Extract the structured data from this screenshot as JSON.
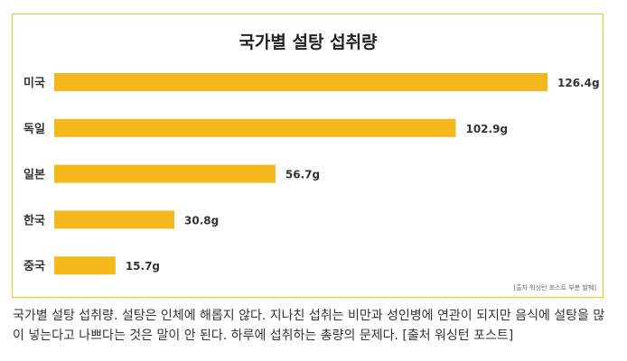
{
  "chart_data": {
    "type": "bar",
    "orientation": "horizontal",
    "title": "국가별 설탕 섭취량",
    "categories": [
      "미국",
      "독일",
      "일본",
      "한국",
      "중국"
    ],
    "values": [
      126.4,
      102.9,
      56.7,
      30.8,
      15.7
    ],
    "value_labels": [
      "126.4g",
      "102.9g",
      "56.7g",
      "30.8g",
      "15.7g"
    ],
    "unit": "g",
    "xlabel": "",
    "ylabel": "",
    "xlim": [
      0,
      126.4
    ],
    "grid": false,
    "source_note": "[출처 워싱턴 포스트 부분 발췌]",
    "bar_color": "#f5b81c"
  },
  "caption": "국가별 설탕 섭취량. 설탕은 인체에 해롭지 않다. 지나친 섭취는 비만과 성인병에 연관이 되지만 음식에 설탕을 많이 넣는다고 나쁘다는 것은 말이 안 된다. 하루에 섭취하는 총량의 문제다. [출처 워싱턴 포스트]"
}
